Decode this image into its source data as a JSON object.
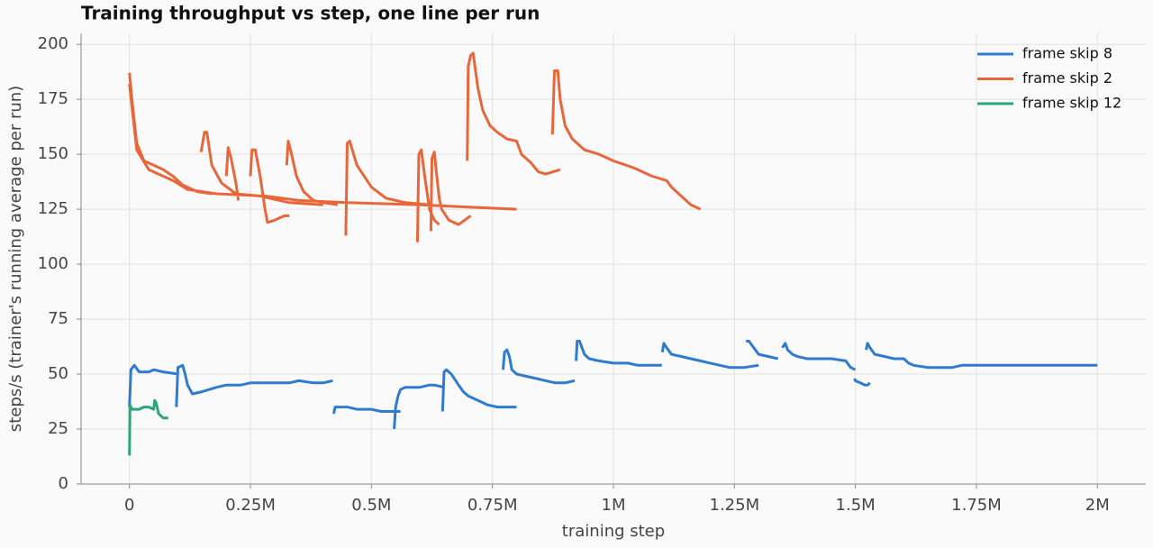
{
  "chart_data": {
    "type": "line",
    "title": "Training throughput vs step, one line per run",
    "xlabel": "training step",
    "ylabel": "steps/s (trainer's running average per run)",
    "xlim": [
      -100000,
      2100000
    ],
    "xticks": [
      0,
      {
        "value": 250000,
        "label": "0.25M"
      },
      {
        "value": 500000,
        "label": "0.5M"
      },
      {
        "value": 750000,
        "label": "0.75M"
      },
      {
        "value": 1000000,
        "label": "1M"
      },
      {
        "value": 1250000,
        "label": "1.25M"
      },
      {
        "value": 1500000,
        "label": "1.5M"
      },
      {
        "value": 1750000,
        "label": "1.75M"
      },
      {
        "value": 2000000,
        "label": "2M"
      }
    ],
    "ylim": [
      0,
      205
    ],
    "yticks": [
      0,
      25,
      50,
      75,
      100,
      125,
      150,
      175,
      200
    ],
    "grid": true,
    "legend": "upper right",
    "series": [
      {
        "name": "frame skip 8",
        "color": "#2f7bd0",
        "x": [
          0,
          3000,
          10000,
          20000,
          40000,
          50000,
          70000,
          100000,
          null,
          97000,
          100000,
          110000,
          115000,
          120000,
          130000,
          150000,
          180000,
          200000,
          230000,
          250000,
          300000,
          330000,
          350000,
          380000,
          400000,
          420000,
          null,
          422000,
          425000,
          450000,
          470000,
          500000,
          520000,
          560000,
          null,
          547000,
          550000,
          555000,
          560000,
          570000,
          600000,
          620000,
          630000,
          650000,
          null,
          647000,
          650000,
          655000,
          665000,
          680000,
          690000,
          700000,
          720000,
          740000,
          760000,
          800000,
          null,
          772000,
          775000,
          780000,
          785000,
          790000,
          800000,
          820000,
          840000,
          860000,
          880000,
          900000,
          920000,
          null,
          923000,
          925000,
          930000,
          935000,
          940000,
          950000,
          970000,
          1000000,
          1030000,
          1050000,
          1100000,
          null,
          1101000,
          1104000,
          1110000,
          1120000,
          1140000,
          1160000,
          1180000,
          1200000,
          1220000,
          1240000,
          1270000,
          1300000,
          null,
          1274000,
          1280000,
          1290000,
          1300000,
          1320000,
          1340000,
          null,
          1349000,
          1355000,
          1360000,
          1370000,
          1380000,
          1400000,
          1450000,
          1480000,
          1490000,
          1500000,
          null,
          1498000,
          1500000,
          1510000,
          1520000,
          1525000,
          1530000,
          null,
          1522000,
          1525000,
          1530000,
          1540000,
          1560000,
          1580000,
          1600000,
          1610000,
          1620000,
          1650000,
          1700000,
          1720000,
          2000000
        ],
        "values": [
          35,
          52,
          54,
          51,
          51,
          52,
          51,
          50,
          null,
          35,
          53,
          54,
          50,
          45,
          41,
          42,
          44,
          45,
          45,
          46,
          46,
          46,
          47,
          46,
          46,
          47,
          null,
          32,
          35,
          35,
          34,
          34,
          33,
          33,
          null,
          25,
          35,
          40,
          43,
          44,
          44,
          45,
          45,
          44,
          null,
          33,
          51,
          52,
          50,
          45,
          42,
          40,
          38,
          36,
          35,
          35,
          null,
          52,
          60,
          61,
          58,
          52,
          50,
          49,
          48,
          47,
          46,
          46,
          47,
          null,
          56,
          65,
          65,
          62,
          59,
          57,
          56,
          55,
          55,
          54,
          54,
          null,
          60,
          64,
          62,
          59,
          58,
          57,
          56,
          55,
          54,
          53,
          53,
          54,
          null,
          65,
          65,
          62,
          59,
          58,
          57,
          null,
          62,
          64,
          61,
          59,
          58,
          57,
          57,
          56,
          53,
          52,
          null,
          48,
          47,
          46,
          45,
          45,
          46,
          null,
          61,
          64,
          62,
          59,
          58,
          57,
          57,
          55,
          54,
          53,
          53,
          54,
          54
        ]
      },
      {
        "name": "frame skip 2",
        "color": "#e8673a",
        "x": [
          0,
          5000,
          15000,
          30000,
          50000,
          70000,
          90000,
          110000,
          140000,
          170000,
          null,
          0,
          15000,
          40000,
          60000,
          90000,
          120000,
          180000,
          280000,
          350000,
          450000,
          600000,
          700000,
          800000,
          null,
          148000,
          155000,
          160000,
          170000,
          190000,
          220000,
          270000,
          330000,
          400000,
          null,
          200000,
          204000,
          210000,
          220000,
          225000,
          null,
          250000,
          253000,
          260000,
          270000,
          280000,
          285000,
          300000,
          320000,
          330000,
          null,
          325000,
          328000,
          335000,
          345000,
          360000,
          380000,
          400000,
          430000,
          null,
          447000,
          450000,
          455000,
          470000,
          500000,
          530000,
          570000,
          620000,
          null,
          595000,
          598000,
          603000,
          610000,
          620000,
          630000,
          640000,
          null,
          623000,
          625000,
          630000,
          635000,
          640000,
          645000,
          660000,
          680000,
          705000,
          null,
          698000,
          700000,
          705000,
          710000,
          720000,
          730000,
          745000,
          760000,
          780000,
          800000,
          810000,
          830000,
          845000,
          860000,
          890000,
          null,
          874000,
          878000,
          885000,
          890000,
          900000,
          915000,
          940000,
          970000,
          1000000,
          1040000,
          1080000,
          1110000,
          1120000,
          1140000,
          1160000,
          1180000
        ],
        "values": [
          187,
          175,
          155,
          147,
          145,
          143,
          140,
          136,
          133,
          132,
          null,
          182,
          152,
          143,
          141,
          138,
          134,
          132,
          131,
          129,
          128,
          127,
          126,
          125,
          null,
          151,
          160,
          160,
          145,
          137,
          132,
          131,
          128,
          127,
          null,
          140,
          153,
          148,
          137,
          129,
          null,
          140,
          152,
          152,
          140,
          125,
          119,
          120,
          122,
          122,
          null,
          145,
          156,
          150,
          140,
          133,
          129,
          128,
          127,
          null,
          113,
          155,
          156,
          145,
          135,
          130,
          128,
          127,
          null,
          110,
          150,
          152,
          140,
          125,
          120,
          118,
          null,
          115,
          148,
          151,
          140,
          130,
          125,
          120,
          118,
          122,
          null,
          147,
          190,
          195,
          196,
          180,
          170,
          163,
          160,
          157,
          156,
          150,
          146,
          142,
          141,
          143,
          null,
          159,
          188,
          188,
          175,
          163,
          157,
          152,
          150,
          147,
          144,
          140,
          138,
          135,
          131,
          127,
          125
        ]
      },
      {
        "name": "frame skip 12",
        "color": "#2aa57f",
        "x": [
          0,
          1000,
          5000,
          20000,
          30000,
          40000,
          50000,
          52000,
          55000,
          60000,
          70000,
          80000
        ],
        "values": [
          13,
          36,
          34,
          34,
          35,
          35,
          34,
          38,
          37,
          32,
          30,
          30
        ]
      }
    ]
  }
}
